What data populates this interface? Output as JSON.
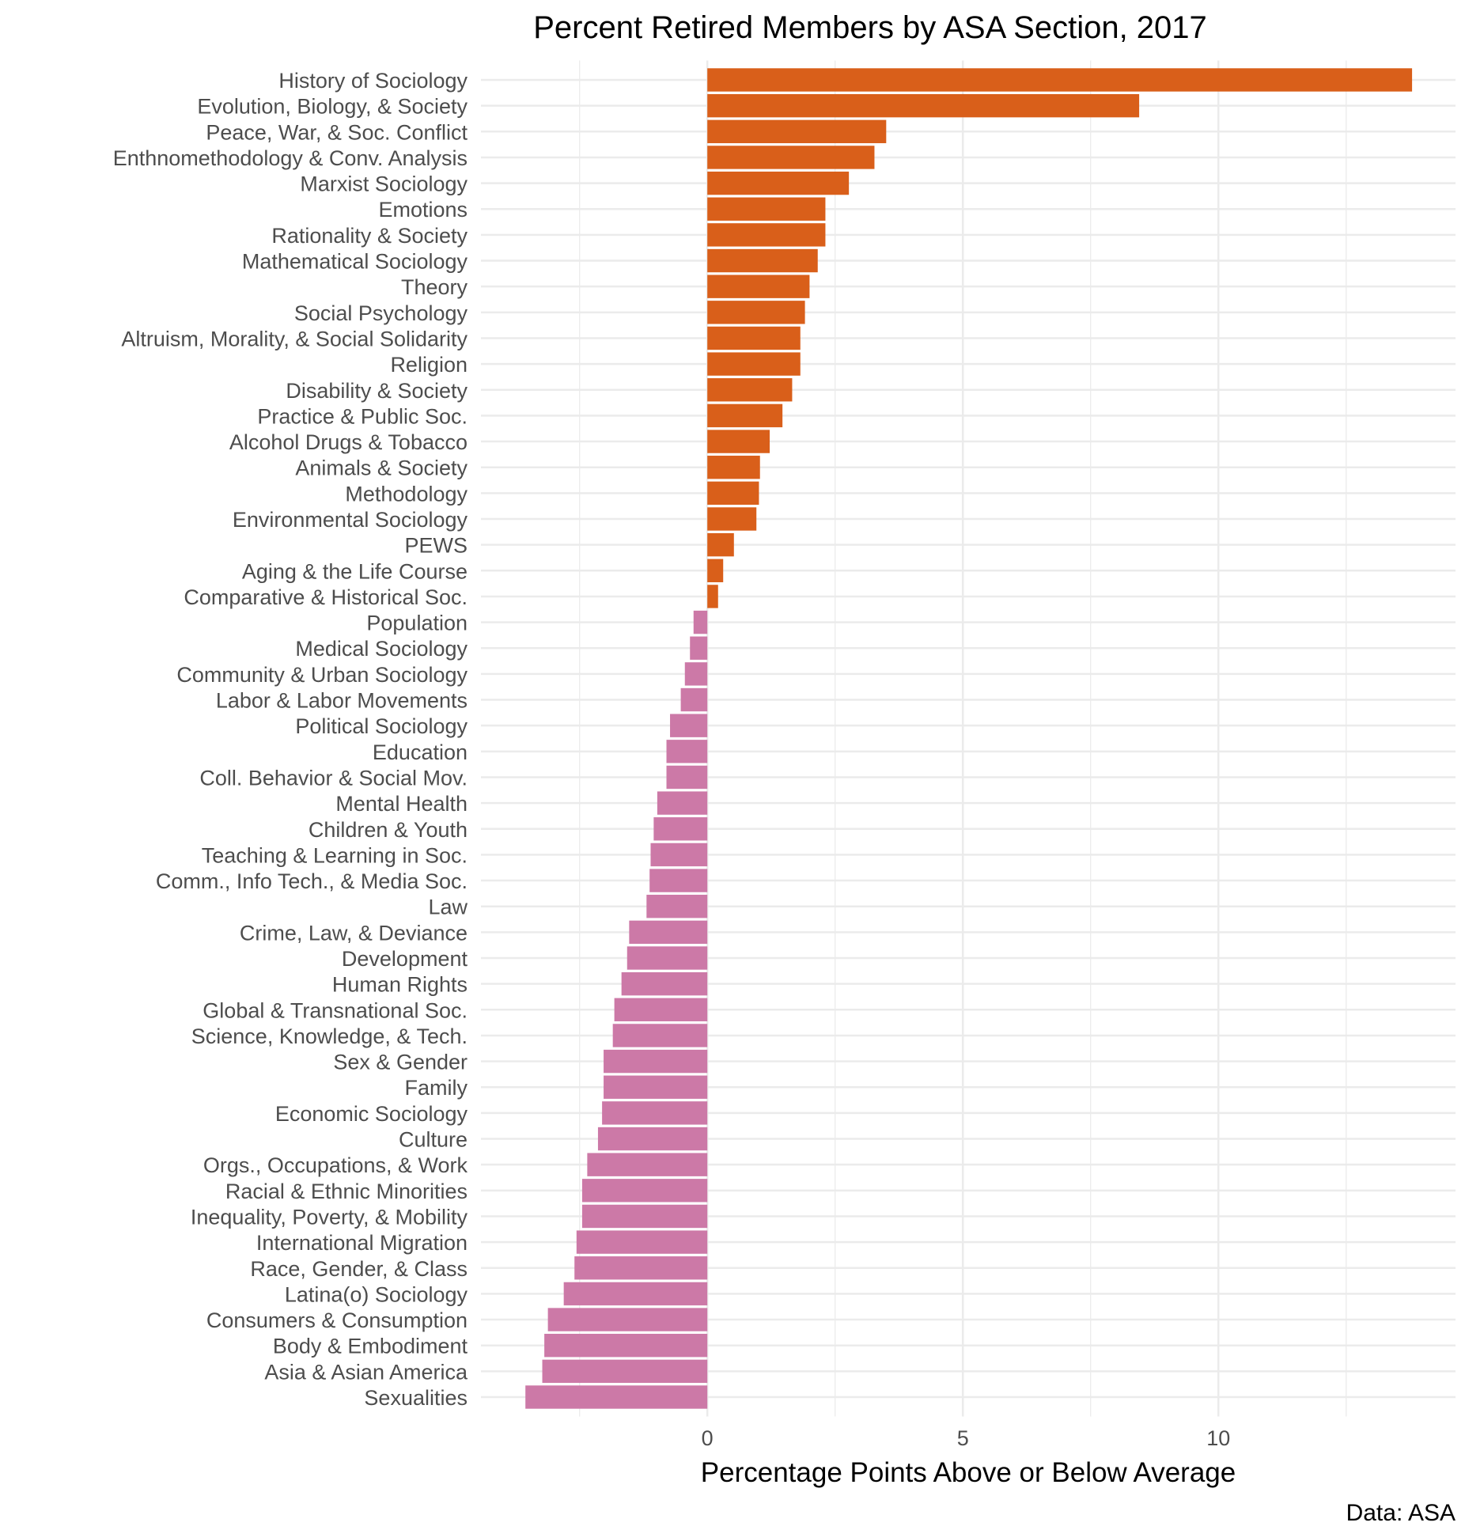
{
  "chart_data": {
    "type": "bar",
    "orientation": "horizontal",
    "title": "Percent Retired Members by ASA Section, 2017",
    "xlabel": "Percentage Points Above or Below Average",
    "ylabel": "",
    "caption": "Data: ASA",
    "xlim": [
      -4.43,
      14.64
    ],
    "xticks": [
      0,
      5,
      10
    ],
    "grid": true,
    "legend": "none",
    "colors": {
      "positive": "#d95f1a",
      "negative": "#cc79a7",
      "grid": "#ebebeb",
      "text": "#4d4d4d"
    },
    "categories": [
      "History of Sociology",
      "Evolution, Biology, & Society",
      "Peace, War, & Soc. Conflict",
      "Enthnomethodology & Conv. Analysis",
      "Marxist Sociology",
      "Emotions",
      "Rationality & Society",
      "Mathematical Sociology",
      "Theory",
      "Social Psychology",
      "Altruism, Morality, & Social Solidarity",
      "Religion",
      "Disability & Society",
      "Practice & Public Soc.",
      "Alcohol Drugs & Tobacco",
      "Animals & Society",
      "Methodology",
      "Environmental Sociology",
      "PEWS",
      "Aging & the Life Course",
      "Comparative & Historical Soc.",
      "Population",
      "Medical Sociology",
      "Community & Urban Sociology",
      "Labor & Labor Movements",
      "Political Sociology",
      "Education",
      "Coll. Behavior & Social Mov.",
      "Mental Health",
      "Children & Youth",
      "Teaching & Learning in Soc.",
      "Comm., Info Tech., & Media Soc.",
      "Law",
      "Crime, Law, & Deviance",
      "Development",
      "Human Rights",
      "Global & Transnational Soc.",
      "Science, Knowledge, & Tech.",
      "Sex & Gender",
      "Family",
      "Economic Sociology",
      "Culture",
      "Orgs., Occupations, & Work",
      "Racial & Ethnic Minorities",
      "Inequality, Poverty, & Mobility",
      "International Migration",
      "Race, Gender, & Class",
      "Latina(o) Sociology",
      "Consumers & Consumption",
      "Body & Embodiment",
      "Asia & Asian America",
      "Sexualities"
    ],
    "values": [
      13.79,
      8.45,
      3.5,
      3.27,
      2.77,
      2.31,
      2.31,
      2.16,
      2.0,
      1.91,
      1.82,
      1.82,
      1.66,
      1.47,
      1.22,
      1.03,
      1.01,
      0.96,
      0.52,
      0.31,
      0.21,
      -0.27,
      -0.34,
      -0.44,
      -0.52,
      -0.73,
      -0.8,
      -0.8,
      -0.98,
      -1.05,
      -1.11,
      -1.13,
      -1.19,
      -1.53,
      -1.57,
      -1.68,
      -1.82,
      -1.85,
      -2.03,
      -2.03,
      -2.06,
      -2.14,
      -2.35,
      -2.45,
      -2.45,
      -2.56,
      -2.6,
      -2.81,
      -3.12,
      -3.19,
      -3.23,
      -3.56
    ]
  }
}
